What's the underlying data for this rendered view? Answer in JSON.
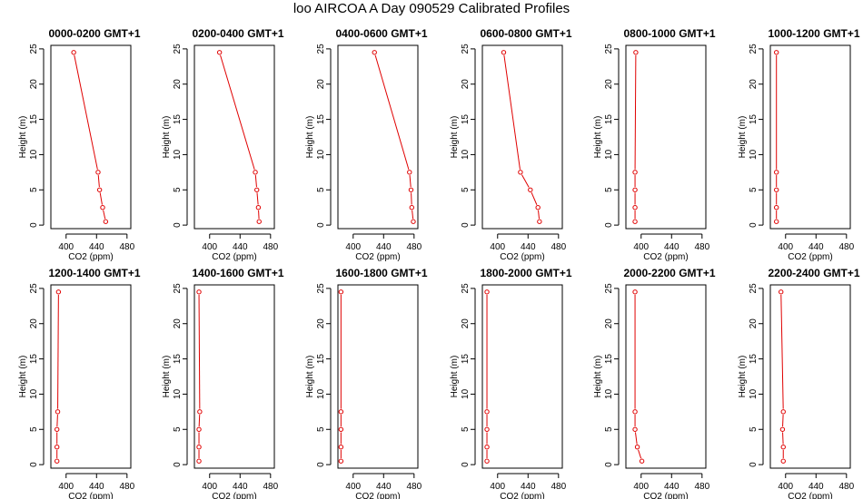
{
  "title": "loo AIRCOA A  Day 090529  Calibrated Profiles",
  "colors": {
    "series": "#e00000",
    "axis": "#000000"
  },
  "chart_data": {
    "type": "line",
    "xlabel": "CO2 (ppm)",
    "ylabel": "Height (m)",
    "xlim": [
      380,
      485
    ],
    "ylim": [
      -0.5,
      25.5
    ],
    "xticks": [
      400,
      440,
      480
    ],
    "yticks": [
      0,
      5,
      10,
      15,
      20,
      25
    ],
    "heights": [
      0.5,
      2.5,
      5,
      7.5,
      24.5
    ],
    "panels": [
      {
        "title": "0000-0200 GMT+1",
        "co2": [
          452,
          448,
          444,
          442,
          410
        ]
      },
      {
        "title": "0200-0400 GMT+1",
        "co2": [
          465,
          464,
          462,
          460,
          413
        ]
      },
      {
        "title": "0400-0600 GMT+1",
        "co2": [
          479,
          477,
          476,
          474,
          428
        ]
      },
      {
        "title": "0600-0800 GMT+1",
        "co2": [
          455,
          453,
          443,
          430,
          408
        ]
      },
      {
        "title": "0800-1000 GMT+1",
        "co2": [
          392,
          392,
          392,
          392,
          393
        ]
      },
      {
        "title": "1000-1200 GMT+1",
        "co2": [
          388,
          388,
          388,
          388,
          388
        ]
      },
      {
        "title": "1200-1400 GMT+1",
        "co2": [
          388,
          388,
          388,
          389,
          390
        ]
      },
      {
        "title": "1400-1600 GMT+1",
        "co2": [
          386,
          386,
          386,
          387,
          386
        ]
      },
      {
        "title": "1600-1800 GMT+1",
        "co2": [
          384,
          384,
          384,
          384,
          384
        ]
      },
      {
        "title": "1800-2000 GMT+1",
        "co2": [
          386,
          386,
          386,
          386,
          386
        ]
      },
      {
        "title": "2000-2200 GMT+1",
        "co2": [
          401,
          395,
          392,
          392,
          392
        ]
      },
      {
        "title": "2200-2400 GMT+1",
        "co2": [
          397,
          397,
          396,
          397,
          394
        ]
      }
    ]
  }
}
